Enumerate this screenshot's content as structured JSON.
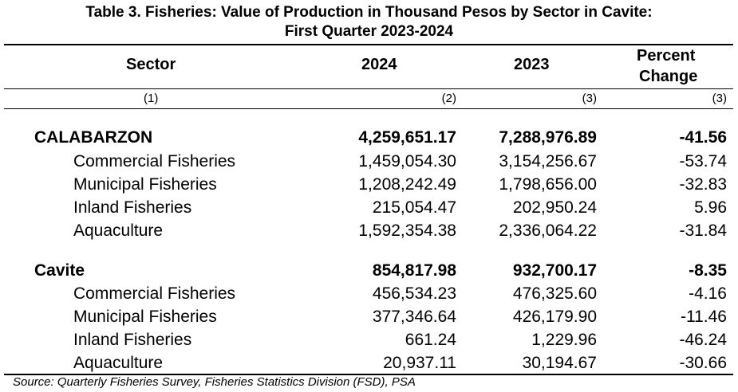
{
  "title": {
    "line1": "Table 3. Fisheries: Value of Production in Thousand Pesos by Sector in Cavite:",
    "line2": "First Quarter 2023-2024"
  },
  "header": {
    "sector": "Sector",
    "y2024": "2024",
    "y2023": "2023",
    "pct1": "Percent",
    "pct2": "Change"
  },
  "col_numbers": [
    "(1)",
    "(2)",
    "(3)",
    "(3)"
  ],
  "rows": [
    {
      "sector": "CALABARZON",
      "v2024": "4,259,651.17",
      "v2023": "7,288,976.89",
      "pct": "-41.56"
    },
    {
      "sector": "Commercial Fisheries",
      "v2024": "1,459,054.30",
      "v2023": "3,154,256.67",
      "pct": "-53.74"
    },
    {
      "sector": "Municipal Fisheries",
      "v2024": "1,208,242.49",
      "v2023": "1,798,656.00",
      "pct": "-32.83"
    },
    {
      "sector": "Inland Fisheries",
      "v2024": "215,054.47",
      "v2023": "202,950.24",
      "pct": "5.96"
    },
    {
      "sector": "Aquaculture",
      "v2024": "1,592,354.38",
      "v2023": "2,336,064.22",
      "pct": "-31.84"
    },
    {
      "sector": "Cavite",
      "v2024": "854,817.98",
      "v2023": "932,700.17",
      "pct": "-8.35"
    },
    {
      "sector": "Commercial Fisheries",
      "v2024": "456,534.23",
      "v2023": "476,325.60",
      "pct": "-4.16"
    },
    {
      "sector": "Municipal Fisheries",
      "v2024": "377,346.64",
      "v2023": "426,179.90",
      "pct": "-11.46"
    },
    {
      "sector": "Inland Fisheries",
      "v2024": "661.24",
      "v2023": "1,229.96",
      "pct": "-46.24"
    },
    {
      "sector": "Aquaculture",
      "v2024": "20,937.11",
      "v2023": "30,194.67",
      "pct": "-30.66"
    }
  ],
  "source": "Source: Quarterly Fisheries Survey, Fisheries Statistics Division (FSD), PSA"
}
